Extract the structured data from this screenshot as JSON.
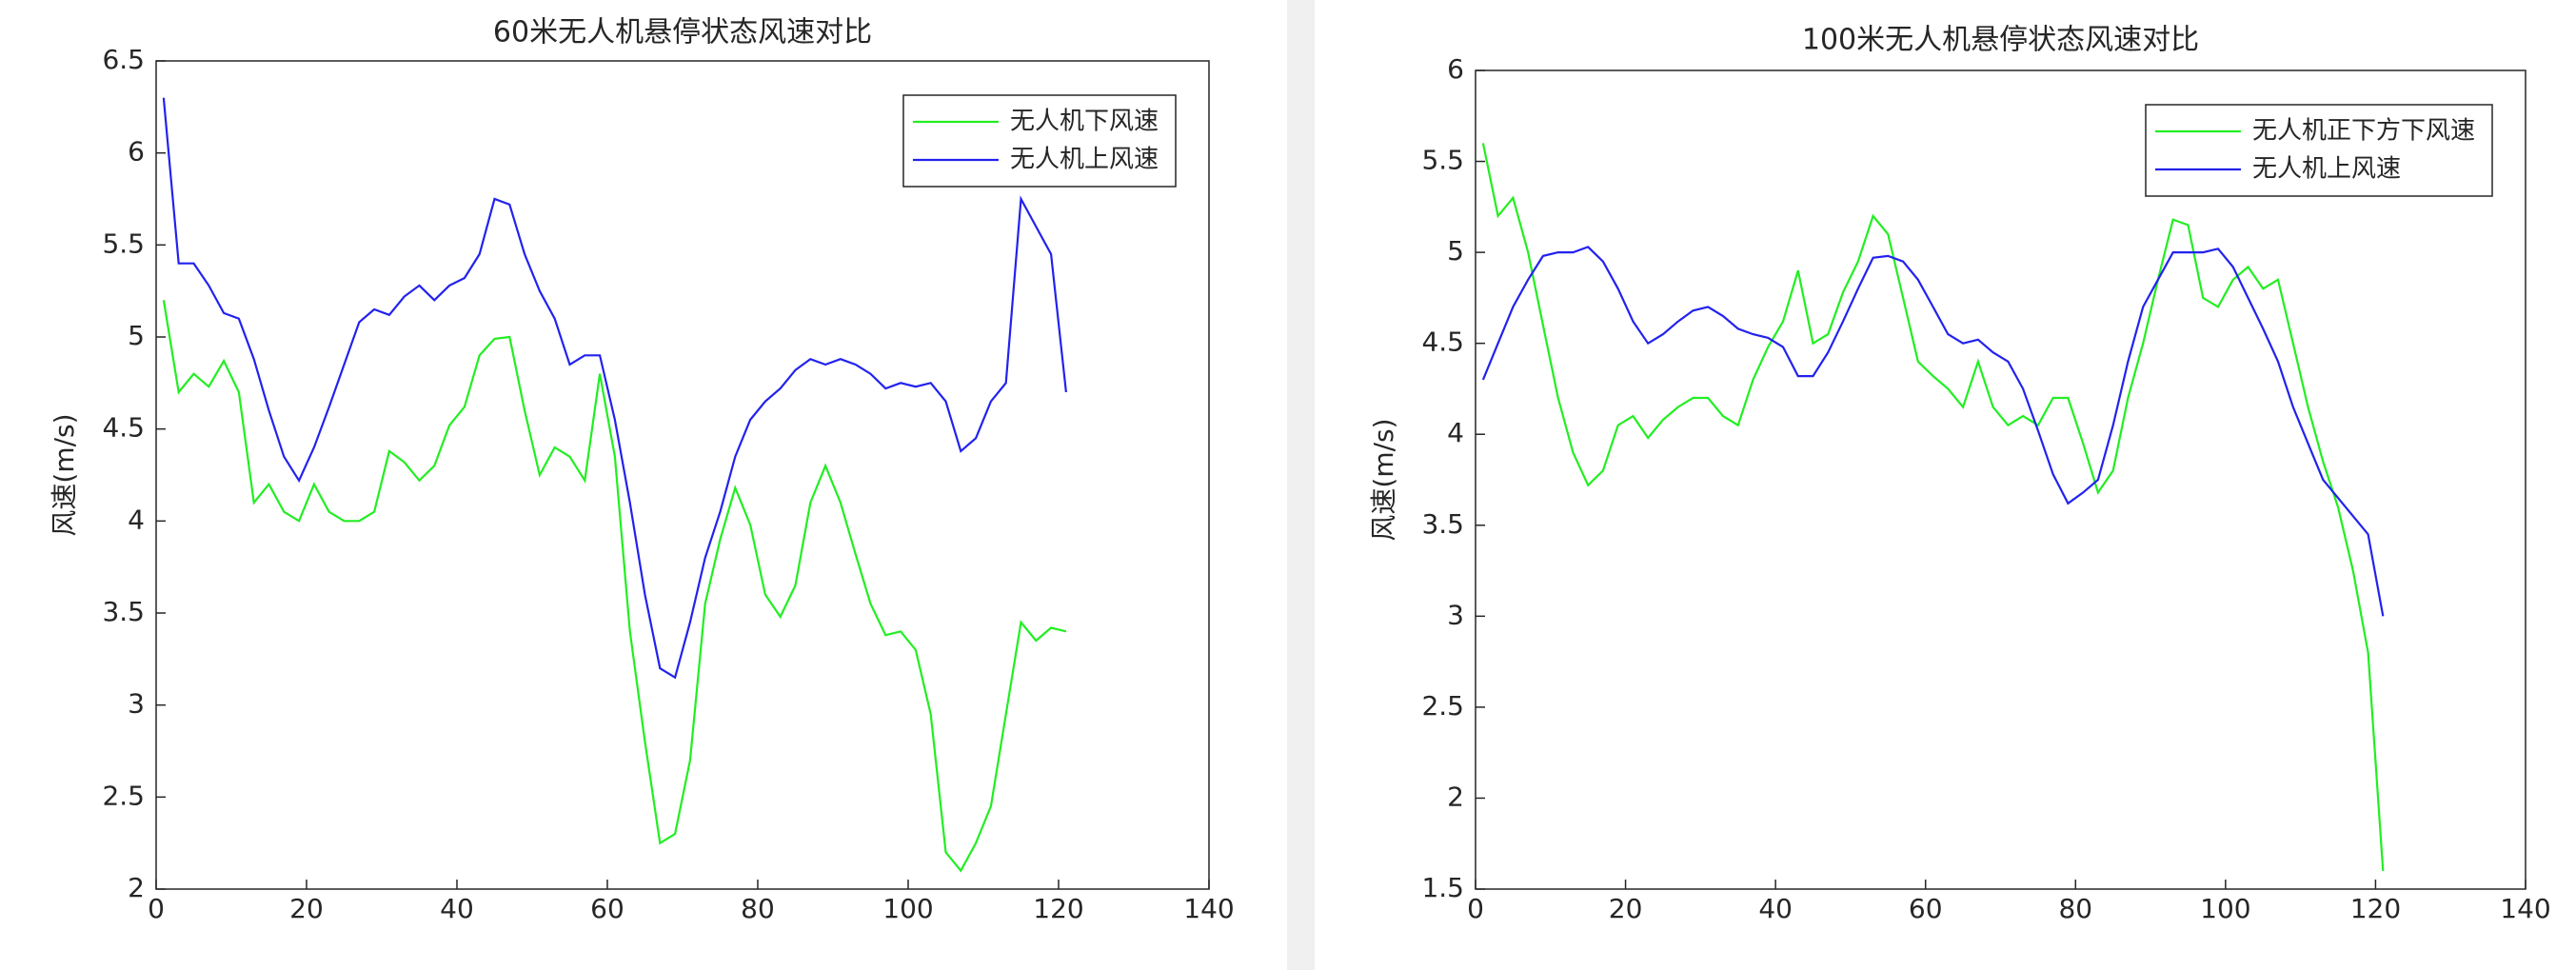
{
  "chart_data": [
    {
      "type": "line",
      "title": "60米无人机悬停状态风速对比",
      "ylabel": "风速(m/s)",
      "legend": "upper right",
      "x": [
        1,
        3,
        5,
        7,
        9,
        11,
        13,
        15,
        17,
        19,
        21,
        23,
        25,
        27,
        29,
        31,
        33,
        35,
        37,
        39,
        41,
        43,
        45,
        47,
        49,
        51,
        53,
        55,
        57,
        59,
        61,
        63,
        65,
        67,
        69,
        71,
        73,
        75,
        77,
        79,
        81,
        83,
        85,
        87,
        89,
        91,
        93,
        95,
        97,
        99,
        101,
        103,
        105,
        107,
        109,
        111,
        113,
        115,
        117,
        119,
        121
      ],
      "series": [
        {
          "name": "无人机下风速",
          "color": "#22ee22",
          "values": [
            5.2,
            4.7,
            4.8,
            4.73,
            4.87,
            4.7,
            4.1,
            4.2,
            4.05,
            4.0,
            4.2,
            4.05,
            4.0,
            4.0,
            4.05,
            4.38,
            4.32,
            4.22,
            4.3,
            4.52,
            4.62,
            4.9,
            4.99,
            5.0,
            4.6,
            4.25,
            4.4,
            4.35,
            4.22,
            4.8,
            4.35,
            3.4,
            2.8,
            2.25,
            2.3,
            2.7,
            3.55,
            3.9,
            4.18,
            3.98,
            3.6,
            3.48,
            3.65,
            4.1,
            4.3,
            4.1,
            3.82,
            3.55,
            3.38,
            3.4,
            3.3,
            2.95,
            2.2,
            2.1,
            2.25,
            2.45,
            2.95,
            3.45,
            3.35,
            3.42,
            3.4
          ]
        },
        {
          "name": "无人机上风速",
          "color": "#2222ee",
          "values": [
            6.3,
            5.4,
            5.4,
            5.28,
            5.13,
            5.1,
            4.88,
            4.6,
            4.35,
            4.22,
            4.4,
            4.62,
            4.85,
            5.08,
            5.15,
            5.12,
            5.22,
            5.28,
            5.2,
            5.28,
            5.32,
            5.45,
            5.75,
            5.72,
            5.45,
            5.25,
            5.1,
            4.85,
            4.9,
            4.9,
            4.55,
            4.1,
            3.6,
            3.2,
            3.15,
            3.45,
            3.8,
            4.05,
            4.35,
            4.55,
            4.65,
            4.72,
            4.82,
            4.88,
            4.85,
            4.88,
            4.85,
            4.8,
            4.72,
            4.75,
            4.73,
            4.75,
            4.65,
            4.38,
            4.45,
            4.65,
            4.75,
            5.75,
            5.6,
            5.45,
            4.7
          ]
        }
      ],
      "xlim": [
        0,
        140
      ],
      "xticks": [
        0,
        20,
        40,
        60,
        80,
        100,
        120,
        140
      ],
      "ylim": [
        2,
        6.5
      ],
      "yticks": [
        2,
        2.5,
        3,
        3.5,
        4,
        4.5,
        5,
        5.5,
        6,
        6.5
      ]
    },
    {
      "type": "line",
      "title": "100米无人机悬停状态风速对比",
      "ylabel": "风速(m/s)",
      "legend": "upper right",
      "x": [
        1,
        3,
        5,
        7,
        9,
        11,
        13,
        15,
        17,
        19,
        21,
        23,
        25,
        27,
        29,
        31,
        33,
        35,
        37,
        39,
        41,
        43,
        45,
        47,
        49,
        51,
        53,
        55,
        57,
        59,
        61,
        63,
        65,
        67,
        69,
        71,
        73,
        75,
        77,
        79,
        81,
        83,
        85,
        87,
        89,
        91,
        93,
        95,
        97,
        99,
        101,
        103,
        105,
        107,
        109,
        111,
        113,
        115,
        117,
        119,
        121
      ],
      "series": [
        {
          "name": "无人机正下方下风速",
          "color": "#22ee22",
          "values": [
            5.6,
            5.2,
            5.3,
            5.0,
            4.6,
            4.2,
            3.9,
            3.72,
            3.8,
            4.05,
            4.1,
            3.98,
            4.08,
            4.15,
            4.2,
            4.2,
            4.1,
            4.05,
            4.3,
            4.48,
            4.62,
            4.9,
            4.5,
            4.55,
            4.78,
            4.95,
            5.2,
            5.1,
            4.75,
            4.4,
            4.32,
            4.25,
            4.15,
            4.4,
            4.15,
            4.05,
            4.1,
            4.05,
            4.2,
            4.2,
            3.95,
            3.68,
            3.8,
            4.2,
            4.5,
            4.85,
            5.18,
            5.15,
            4.75,
            4.7,
            4.85,
            4.92,
            4.8,
            4.85,
            4.5,
            4.15,
            3.85,
            3.6,
            3.25,
            2.8,
            1.6
          ]
        },
        {
          "name": "无人机上风速",
          "color": "#2222ee",
          "values": [
            4.3,
            4.5,
            4.7,
            4.85,
            4.98,
            5.0,
            5.0,
            5.03,
            4.95,
            4.8,
            4.62,
            4.5,
            4.55,
            4.62,
            4.68,
            4.7,
            4.65,
            4.58,
            4.55,
            4.53,
            4.48,
            4.32,
            4.32,
            4.45,
            4.62,
            4.8,
            4.97,
            4.98,
            4.95,
            4.85,
            4.7,
            4.55,
            4.5,
            4.52,
            4.45,
            4.4,
            4.25,
            4.02,
            3.78,
            3.62,
            3.68,
            3.75,
            4.05,
            4.4,
            4.7,
            4.85,
            5.0,
            5.0,
            5.0,
            5.02,
            4.92,
            4.75,
            4.58,
            4.4,
            4.15,
            3.95,
            3.75,
            3.65,
            3.55,
            3.45,
            3.0
          ]
        }
      ],
      "xlim": [
        0,
        140
      ],
      "xticks": [
        0,
        20,
        40,
        60,
        80,
        100,
        120,
        140
      ],
      "ylim": [
        1.5,
        6
      ],
      "yticks": [
        1.5,
        2,
        2.5,
        3,
        3.5,
        4,
        4.5,
        5,
        5.5,
        6
      ]
    }
  ]
}
